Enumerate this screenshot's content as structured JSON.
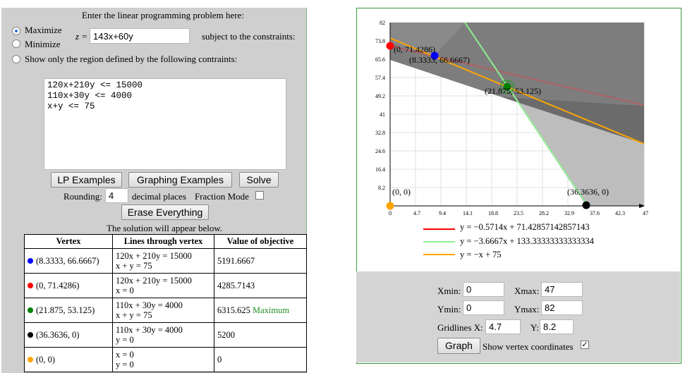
{
  "left": {
    "heading": "Enter the linear programming problem here:",
    "maximize_label": "Maximize",
    "minimize_label": "Minimize",
    "show_region_label": "Show only the region defined by the following contraints:",
    "objective_prefix": "z =",
    "objective_value": "143x+60y",
    "subject_to": "subject to the constraints:",
    "constraints_text": "120x+210y <= 15000\n110x+30y <= 4000\nx+y <= 75",
    "buttons": {
      "lp_examples": "LP Examples",
      "graphing_examples": "Graphing Examples",
      "solve": "Solve",
      "erase": "Erase Everything"
    },
    "rounding_label": "Rounding:",
    "rounding_value": "4",
    "decimal_places": "decimal places",
    "fraction_mode": "Fraction Mode",
    "solution_note": "The solution will appear below.",
    "table": {
      "headers": [
        "Vertex",
        "Lines through vertex",
        "Value of objective"
      ],
      "rows": [
        {
          "color": "#0000ff",
          "vertex": "(8.3333, 66.6667)",
          "lines": [
            "120x + 210y  =  15000",
            "x + y  =  75"
          ],
          "value": "5191.6667",
          "tag": ""
        },
        {
          "color": "#ff0000",
          "vertex": "(0, 71.4286)",
          "lines": [
            "120x + 210y  =  15000",
            "x = 0"
          ],
          "value": "4285.7143",
          "tag": ""
        },
        {
          "color": "#008000",
          "vertex": "(21.875, 53.125)",
          "lines": [
            "110x + 30y  =  4000",
            "x + y  =  75"
          ],
          "value": "6315.625",
          "tag": "Maximum"
        },
        {
          "color": "#000000",
          "vertex": "(36.3636, 0)",
          "lines": [
            "110x + 30y  =  4000",
            "y = 0"
          ],
          "value": "5200",
          "tag": ""
        },
        {
          "color": "#ffa500",
          "vertex": "(0, 0)",
          "lines": [
            "x = 0",
            "y = 0"
          ],
          "value": "0",
          "tag": ""
        }
      ]
    }
  },
  "graph": {
    "x_ticks": [
      "0",
      "4.7",
      "9.4",
      "14.1",
      "18.8",
      "23.5",
      "28.2",
      "32.9",
      "37.6",
      "42.3",
      "47"
    ],
    "y_ticks": [
      "8.2",
      "16.4",
      "24.6",
      "32.8",
      "41",
      "49.2",
      "57.4",
      "65.6",
      "73.8",
      "82"
    ],
    "vertex_labels": [
      "(0, 71.4286)",
      "(8.3333, 66.6667)",
      "(21.875, 53.125)",
      "(0, 0)",
      "(36.3636, 0)"
    ],
    "legend": [
      {
        "color": "#ff0000",
        "text": "y  =  −0.5714x + 71.42857142857143"
      },
      {
        "color": "#90ee90",
        "text": "y  =  −3.6667x + 133.33333333333334"
      },
      {
        "color": "#ffa500",
        "text": "y  =  −x + 75"
      }
    ]
  },
  "controls": {
    "xmin_label": "Xmin:",
    "xmin": "0",
    "xmax_label": "Xmax:",
    "xmax": "47",
    "ymin_label": "Ymin:",
    "ymin": "0",
    "ymax_label": "Ymax:",
    "ymax": "82",
    "gridx_label": "Gridlines X:",
    "gridx": "4.7",
    "gridy_label": "Y:",
    "gridy": "8.2",
    "graph_button": "Graph",
    "show_vertex": "Show vertex coordinates"
  }
}
